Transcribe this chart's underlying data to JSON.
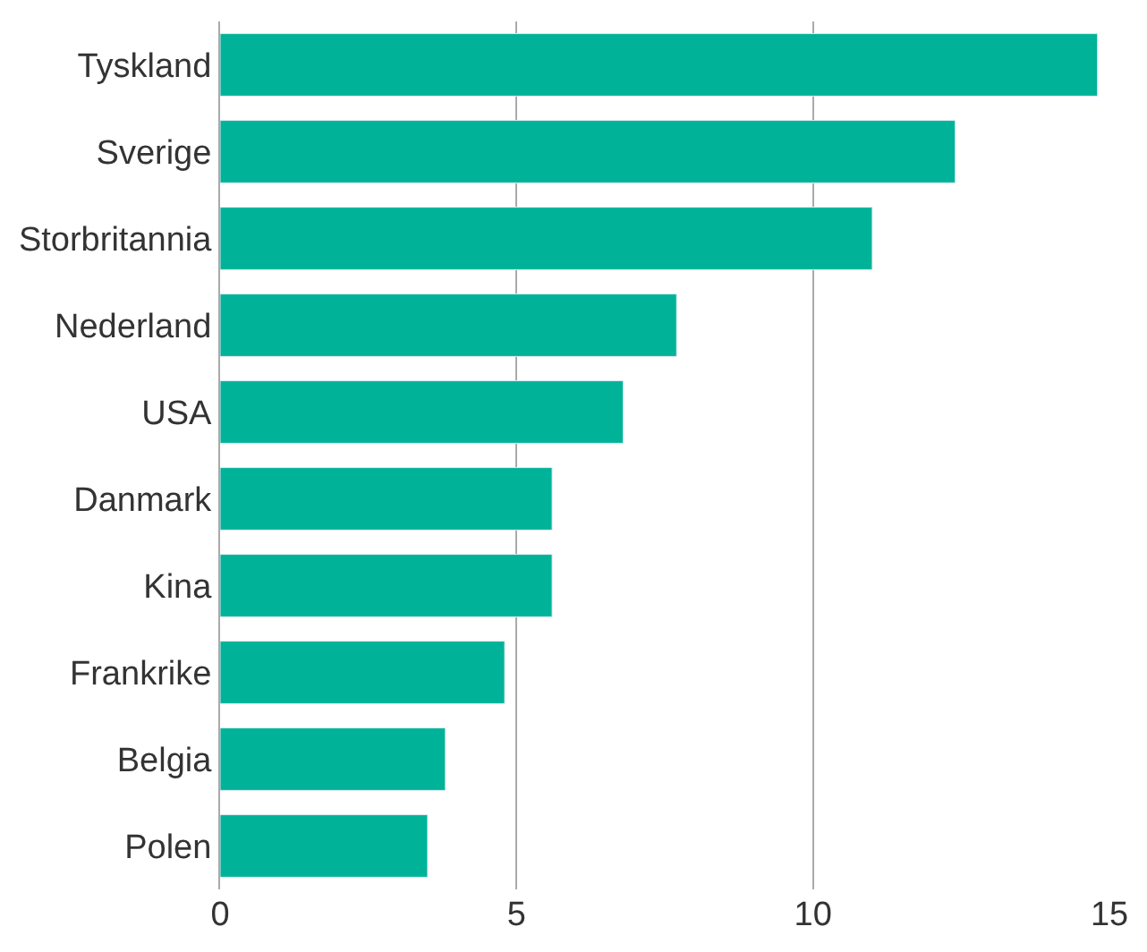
{
  "chart_data": {
    "type": "bar",
    "orientation": "horizontal",
    "categories": [
      "Tyskland",
      "Sverige",
      "Storbritannia",
      "Nederland",
      "USA",
      "Danmark",
      "Kina",
      "Frankrike",
      "Belgia",
      "Polen"
    ],
    "values": [
      14.8,
      12.4,
      11.0,
      7.7,
      6.8,
      5.6,
      5.6,
      4.8,
      3.8,
      3.5
    ],
    "color": "#00b398",
    "xlim": [
      0,
      15
    ],
    "xticks": [
      0,
      5,
      10,
      15
    ],
    "grid": "x"
  }
}
